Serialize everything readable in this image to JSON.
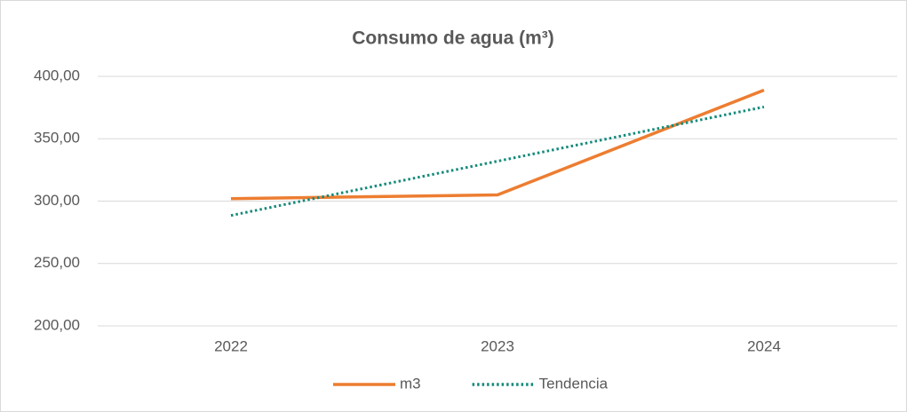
{
  "chart_data": {
    "type": "line",
    "title": "Consumo de agua (m³)",
    "categories": [
      "2022",
      "2023",
      "2024"
    ],
    "series": [
      {
        "name": "m3",
        "color": "#ed7d31",
        "style": "solid",
        "values": [
          302,
          305,
          389
        ]
      },
      {
        "name": "Tendencia",
        "color": "#138a7a",
        "style": "dotted",
        "values": [
          288.5,
          332,
          375.5
        ]
      }
    ],
    "ylim": [
      200,
      400
    ],
    "yticks": [
      {
        "value": 200,
        "label": "200,00"
      },
      {
        "value": 250,
        "label": "250,00"
      },
      {
        "value": 300,
        "label": "300,00"
      },
      {
        "value": 350,
        "label": "350,00"
      },
      {
        "value": 400,
        "label": "400,00"
      }
    ],
    "grid": true,
    "legend": "bottom"
  }
}
